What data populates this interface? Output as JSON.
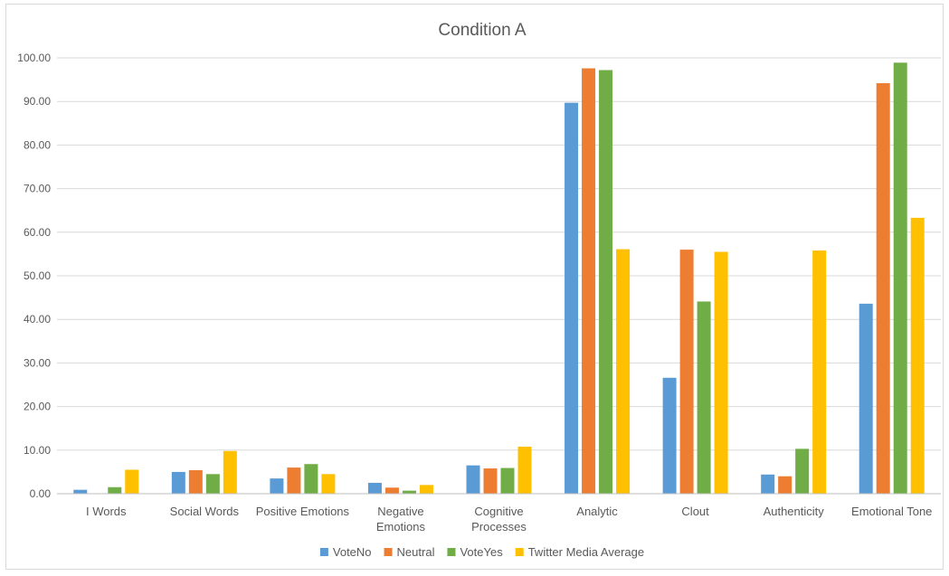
{
  "chart_data": {
    "type": "bar",
    "title": "Condition A",
    "xlabel": "",
    "ylabel": "",
    "ylim": [
      0,
      100
    ],
    "yticks": [
      "0.00",
      "10.00",
      "20.00",
      "30.00",
      "40.00",
      "50.00",
      "60.00",
      "70.00",
      "80.00",
      "90.00",
      "100.00"
    ],
    "grid": true,
    "legend_position": "bottom",
    "categories": [
      [
        "I Words"
      ],
      [
        "Social Words"
      ],
      [
        "Positive Emotions"
      ],
      [
        "Negative",
        "Emotions"
      ],
      [
        "Cognitive",
        "Processes"
      ],
      [
        "Analytic"
      ],
      [
        "Clout"
      ],
      [
        "Authenticity"
      ],
      [
        "Emotional Tone"
      ]
    ],
    "series": [
      {
        "name": "VoteNo",
        "color": "#5B9BD5",
        "values": [
          0.9,
          5.0,
          3.5,
          2.5,
          6.5,
          89.7,
          26.6,
          4.4,
          43.6
        ]
      },
      {
        "name": "Neutral",
        "color": "#ED7D31",
        "values": [
          0.0,
          5.4,
          6.0,
          1.4,
          5.8,
          97.6,
          56.0,
          4.0,
          94.2
        ]
      },
      {
        "name": "VoteYes",
        "color": "#70AD47",
        "values": [
          1.5,
          4.5,
          6.8,
          0.7,
          5.9,
          97.2,
          44.1,
          10.3,
          98.9
        ]
      },
      {
        "name": "Twitter Media Average",
        "color": "#FFC000",
        "values": [
          5.5,
          9.8,
          4.5,
          2.0,
          10.8,
          56.1,
          55.5,
          55.8,
          63.3
        ]
      }
    ]
  }
}
